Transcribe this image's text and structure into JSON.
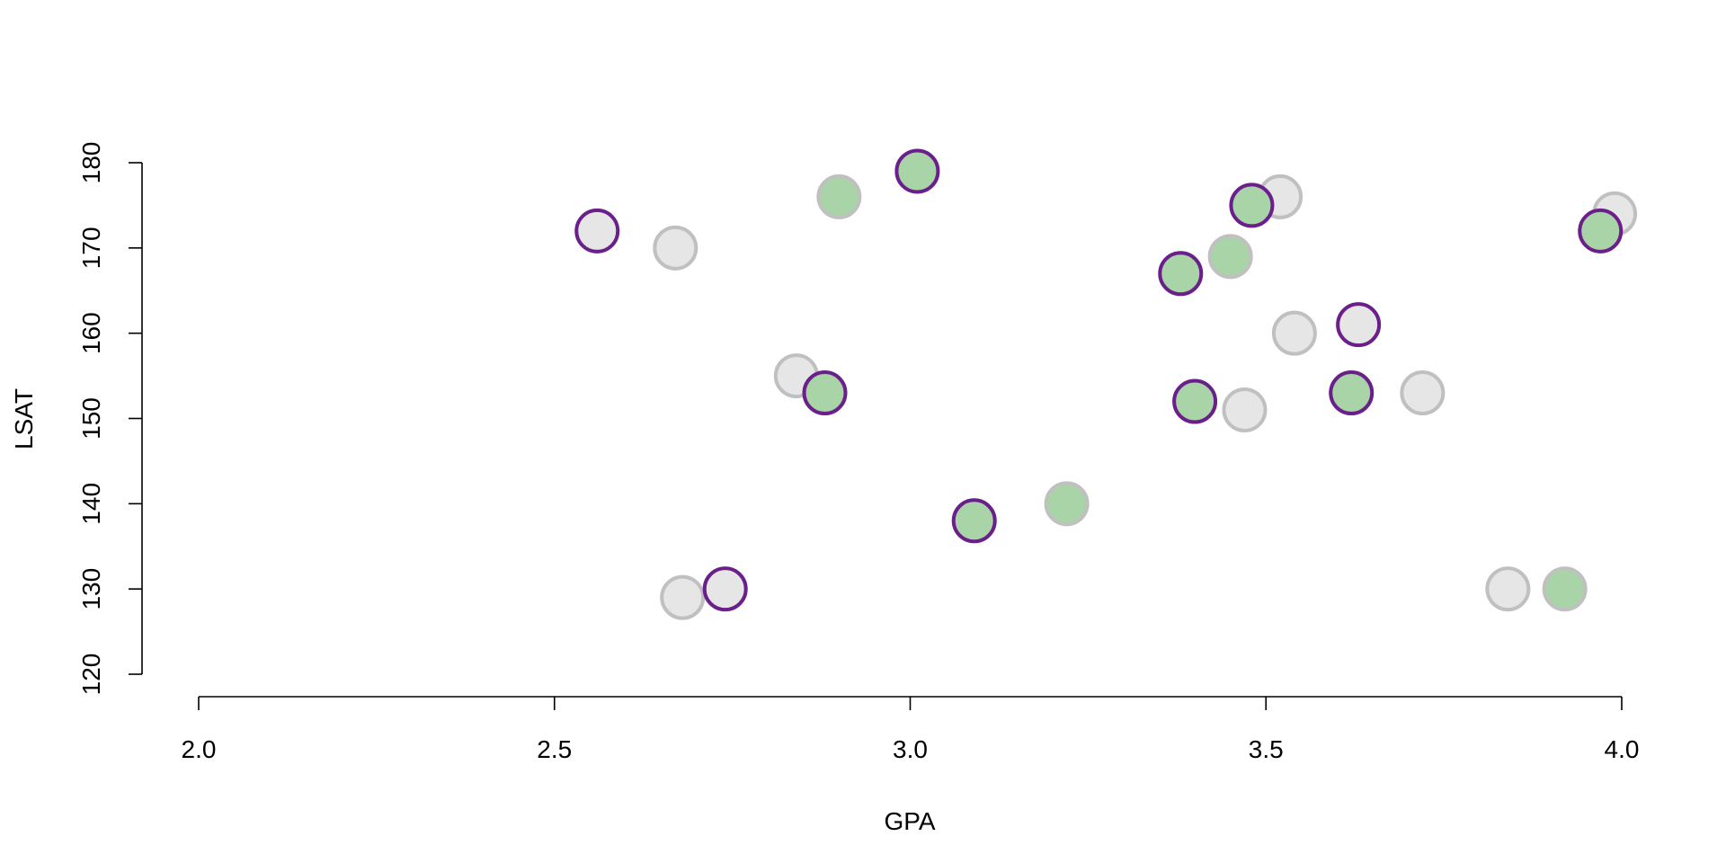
{
  "chart_data": {
    "type": "scatter",
    "title": "",
    "xlabel": "GPA",
    "ylabel": "LSAT",
    "xlim": [
      2.0,
      4.0
    ],
    "ylim": [
      120,
      180
    ],
    "x_ticks": [
      "2.0",
      "2.5",
      "3.0",
      "3.5",
      "4.0"
    ],
    "y_ticks": [
      "120",
      "130",
      "140",
      "150",
      "160",
      "170",
      "180"
    ],
    "grid": false,
    "legend": "none",
    "colors": {
      "gray_fill": "#e6e6e6",
      "gray_stroke": "#c0c0c0",
      "green_fill": "#a8d4a8",
      "purple_stroke": "#6a1f8a"
    },
    "points": [
      {
        "x": 2.56,
        "y": 172,
        "fill": "gray",
        "stroke": "purple"
      },
      {
        "x": 2.67,
        "y": 170,
        "fill": "gray",
        "stroke": "gray"
      },
      {
        "x": 2.68,
        "y": 129,
        "fill": "gray",
        "stroke": "gray"
      },
      {
        "x": 2.74,
        "y": 130,
        "fill": "gray",
        "stroke": "purple"
      },
      {
        "x": 2.84,
        "y": 155,
        "fill": "gray",
        "stroke": "gray"
      },
      {
        "x": 2.88,
        "y": 153,
        "fill": "green",
        "stroke": "purple"
      },
      {
        "x": 2.9,
        "y": 176,
        "fill": "green",
        "stroke": "gray"
      },
      {
        "x": 3.01,
        "y": 179,
        "fill": "green",
        "stroke": "purple"
      },
      {
        "x": 3.09,
        "y": 138,
        "fill": "green",
        "stroke": "purple"
      },
      {
        "x": 3.22,
        "y": 140,
        "fill": "green",
        "stroke": "gray"
      },
      {
        "x": 3.38,
        "y": 167,
        "fill": "green",
        "stroke": "purple"
      },
      {
        "x": 3.4,
        "y": 152,
        "fill": "green",
        "stroke": "purple"
      },
      {
        "x": 3.45,
        "y": 169,
        "fill": "green",
        "stroke": "gray"
      },
      {
        "x": 3.47,
        "y": 151,
        "fill": "gray",
        "stroke": "gray"
      },
      {
        "x": 3.52,
        "y": 176,
        "fill": "gray",
        "stroke": "gray"
      },
      {
        "x": 3.48,
        "y": 175,
        "fill": "green",
        "stroke": "purple"
      },
      {
        "x": 3.54,
        "y": 160,
        "fill": "gray",
        "stroke": "gray"
      },
      {
        "x": 3.62,
        "y": 153,
        "fill": "green",
        "stroke": "purple"
      },
      {
        "x": 3.63,
        "y": 161,
        "fill": "gray",
        "stroke": "purple"
      },
      {
        "x": 3.72,
        "y": 153,
        "fill": "gray",
        "stroke": "gray"
      },
      {
        "x": 3.84,
        "y": 130,
        "fill": "gray",
        "stroke": "gray"
      },
      {
        "x": 3.92,
        "y": 130,
        "fill": "green",
        "stroke": "gray"
      },
      {
        "x": 3.99,
        "y": 174,
        "fill": "gray",
        "stroke": "gray"
      },
      {
        "x": 3.97,
        "y": 172,
        "fill": "green",
        "stroke": "purple"
      }
    ]
  }
}
